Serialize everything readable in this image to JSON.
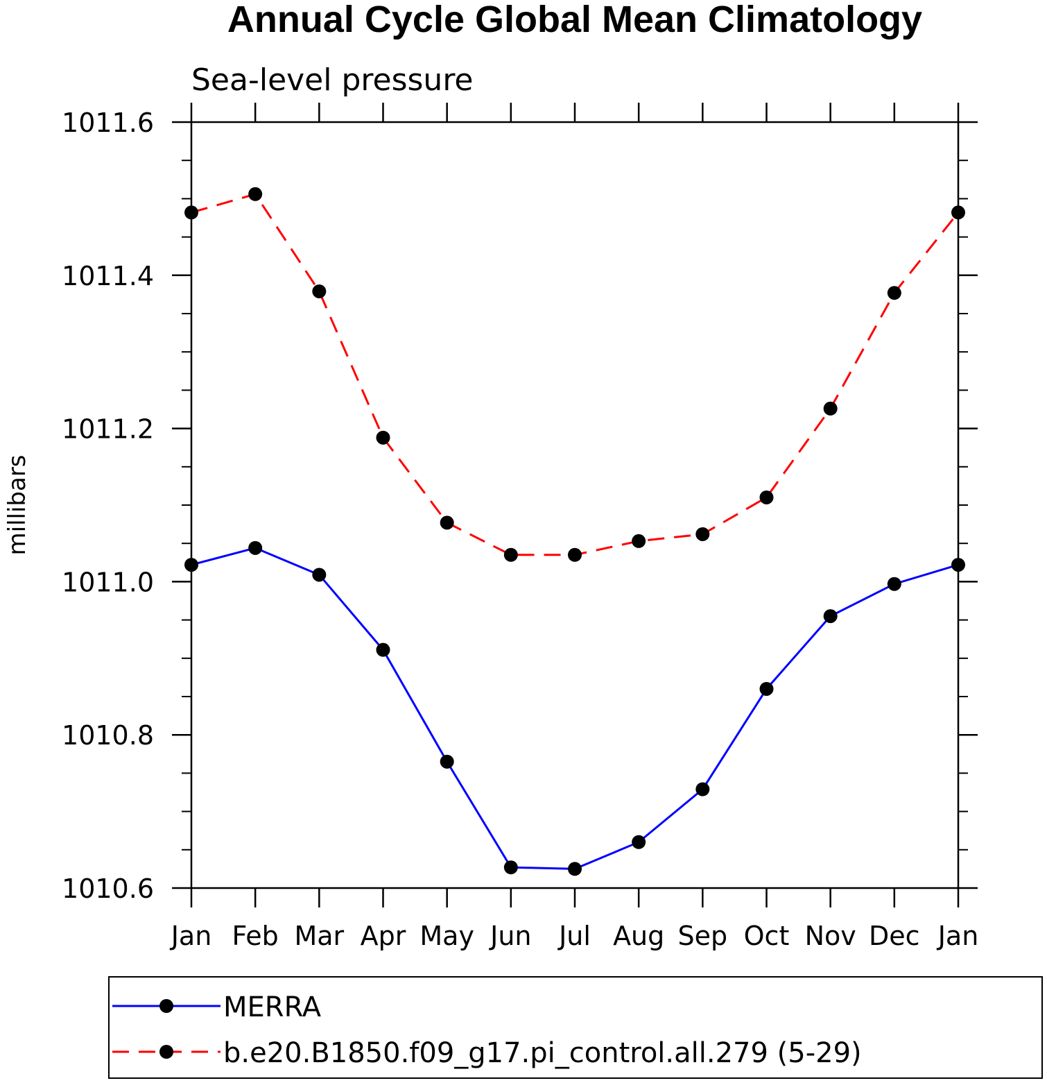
{
  "chart_data": {
    "type": "line",
    "title": "Annual Cycle Global Mean Climatology",
    "subtitle": "Sea-level pressure",
    "xlabel": "",
    "ylabel": "millibars",
    "categories": [
      "Jan",
      "Feb",
      "Mar",
      "Apr",
      "May",
      "Jun",
      "Jul",
      "Aug",
      "Sep",
      "Oct",
      "Nov",
      "Dec",
      "Jan"
    ],
    "ylim": [
      1010.6,
      1011.6
    ],
    "yticks": [
      1010.6,
      1010.8,
      1011.0,
      1011.2,
      1011.4,
      1011.6
    ],
    "ytick_labels": [
      "1010.6",
      "1010.8",
      "1011.0",
      "1011.2",
      "1011.4",
      "1011.6"
    ],
    "grid": false,
    "legend_position": "bottom",
    "series": [
      {
        "name": "MERRA",
        "color": "#0000ff",
        "dashed": false,
        "marker": "filled-circle",
        "values": [
          1011.022,
          1011.044,
          1011.009,
          1010.911,
          1010.765,
          1010.627,
          1010.625,
          1010.66,
          1010.729,
          1010.86,
          1010.955,
          1010.997,
          1011.022
        ]
      },
      {
        "name": "b.e20.B1850.f09_g17.pi_control.all.279 (5-29)",
        "color": "#ff0000",
        "dashed": true,
        "marker": "filled-circle",
        "values": [
          1011.482,
          1011.506,
          1011.379,
          1011.188,
          1011.077,
          1011.035,
          1011.035,
          1011.053,
          1011.062,
          1011.11,
          1011.226,
          1011.377,
          1011.482
        ]
      }
    ]
  }
}
